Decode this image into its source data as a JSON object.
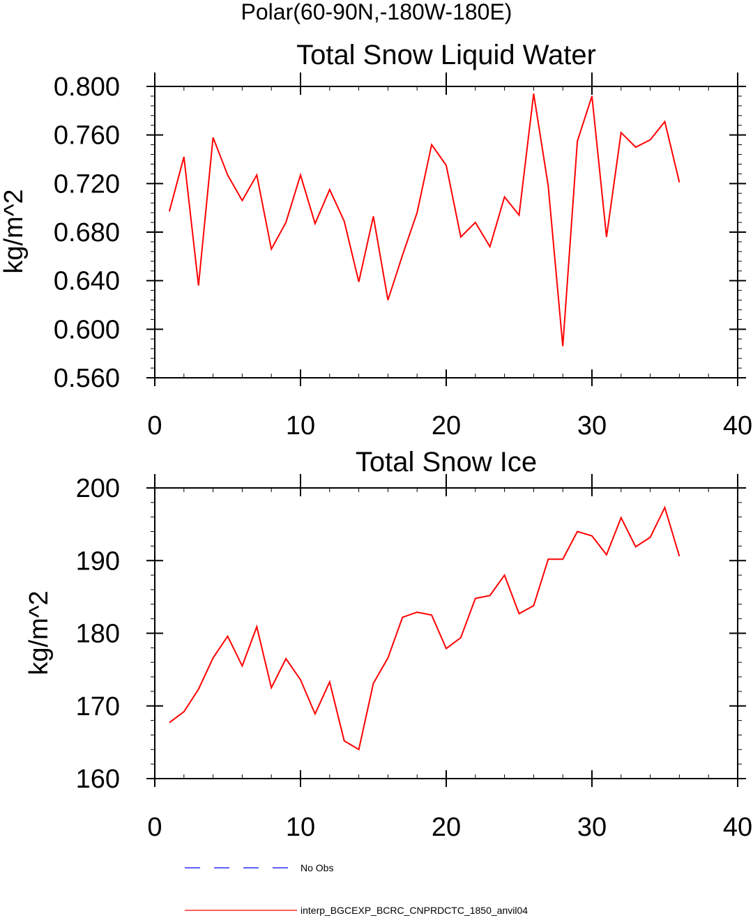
{
  "figure": {
    "super_title": "Polar(60-90N,-180W-180E)"
  },
  "chart_data": [
    {
      "type": "line",
      "title": "Total Snow Liquid Water",
      "xlabel": "",
      "ylabel": "kg/m^2",
      "xlim": [
        0,
        40
      ],
      "ylim": [
        0.56,
        0.8
      ],
      "x_ticks": [
        0,
        10,
        20,
        30,
        40
      ],
      "x_tick_labels": [
        "0",
        "10",
        "20",
        "30",
        "40"
      ],
      "y_ticks": [
        0.56,
        0.6,
        0.64,
        0.68,
        0.72,
        0.76,
        0.8
      ],
      "y_tick_labels": [
        "0.560",
        "0.600",
        "0.640",
        "0.680",
        "0.720",
        "0.760",
        "0.800"
      ],
      "grid": false,
      "series": [
        {
          "name": "interp_BGCEXP_BCRC_CNPRDCTC_1850_anvil04",
          "color": "#ff0000",
          "x": [
            1,
            2,
            3,
            4,
            5,
            6,
            7,
            8,
            9,
            10,
            11,
            12,
            13,
            14,
            15,
            16,
            17,
            18,
            19,
            20,
            21,
            22,
            23,
            24,
            25,
            26,
            27,
            28,
            29,
            30,
            31,
            32,
            33,
            34,
            35,
            36
          ],
          "values": [
            0.697,
            0.742,
            0.636,
            0.758,
            0.727,
            0.706,
            0.727,
            0.666,
            0.688,
            0.727,
            0.687,
            0.715,
            0.689,
            0.639,
            0.693,
            0.624,
            0.661,
            0.696,
            0.752,
            0.735,
            0.676,
            0.688,
            0.668,
            0.709,
            0.694,
            0.794,
            0.718,
            0.586,
            0.755,
            0.792,
            0.676,
            0.762,
            0.75,
            0.756,
            0.771,
            0.721
          ]
        }
      ]
    },
    {
      "type": "line",
      "title": "Total Snow Ice",
      "xlabel": "",
      "ylabel": "kg/m^2",
      "xlim": [
        0,
        40
      ],
      "ylim": [
        160,
        200
      ],
      "x_ticks": [
        0,
        10,
        20,
        30,
        40
      ],
      "x_tick_labels": [
        "0",
        "10",
        "20",
        "30",
        "40"
      ],
      "y_ticks": [
        160,
        170,
        180,
        190,
        200
      ],
      "y_tick_labels": [
        "160",
        "170",
        "180",
        "190",
        "200"
      ],
      "grid": false,
      "series": [
        {
          "name": "interp_BGCEXP_BCRC_CNPRDCTC_1850_anvil04",
          "color": "#ff0000",
          "x": [
            1,
            2,
            3,
            4,
            5,
            6,
            7,
            8,
            9,
            10,
            11,
            12,
            13,
            14,
            15,
            16,
            17,
            18,
            19,
            20,
            21,
            22,
            23,
            24,
            25,
            26,
            27,
            28,
            29,
            30,
            31,
            32,
            33,
            34,
            35,
            36
          ],
          "values": [
            167.7,
            169.2,
            172.3,
            176.6,
            179.6,
            175.5,
            180.9,
            172.5,
            176.5,
            173.6,
            168.9,
            173.3,
            165.2,
            164.0,
            173.1,
            176.6,
            182.2,
            182.9,
            182.5,
            177.9,
            179.4,
            184.8,
            185.2,
            188.0,
            182.7,
            183.8,
            190.2,
            190.2,
            194.0,
            193.4,
            190.8,
            195.9,
            191.9,
            193.2,
            197.3,
            190.6
          ]
        }
      ]
    }
  ],
  "legend": {
    "placement": "bottom-left",
    "entries": [
      {
        "label": "No Obs",
        "color": "#0000ff",
        "dash": "dashed"
      },
      {
        "label": "interp_BGCEXP_BCRC_CNPRDCTC_1850_anvil04",
        "color": "#ff0000",
        "dash": "solid"
      }
    ]
  }
}
